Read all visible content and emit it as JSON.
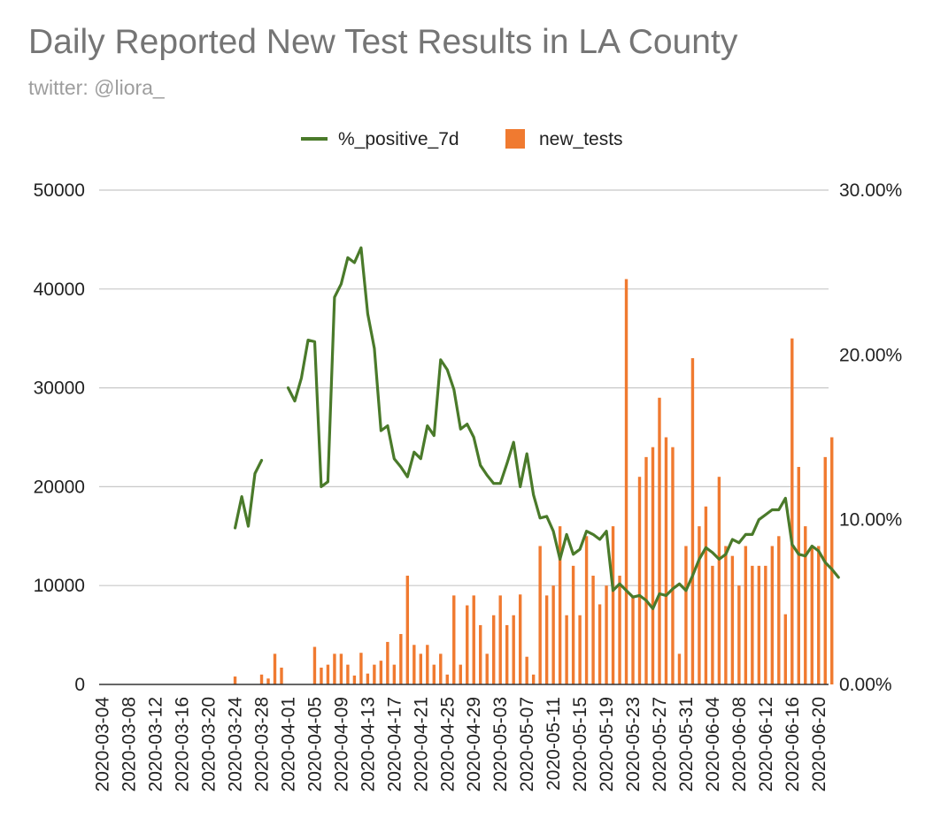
{
  "chart_data": {
    "type": "bar",
    "title": "Daily Reported New Test Results in LA County",
    "subtitle": "twitter: @liora_",
    "xlabel": "",
    "ylabel_left": "",
    "ylabel_right": "",
    "legend_position": "top-center",
    "grid": true,
    "start_date": "2020-03-04",
    "date_labels": [
      "2020-03-04",
      "2020-03-08",
      "2020-03-12",
      "2020-03-16",
      "2020-03-20",
      "2020-03-24",
      "2020-03-28",
      "2020-04-01",
      "2020-04-05",
      "2020-04-09",
      "2020-04-13",
      "2020-04-17",
      "2020-04-21",
      "2020-04-25",
      "2020-04-29",
      "2020-05-03",
      "2020-05-07",
      "2020-05-11",
      "2020-05-15",
      "2020-05-19",
      "2020-05-23",
      "2020-05-27",
      "2020-05-31",
      "2020-06-04",
      "2020-06-08",
      "2020-06-12",
      "2020-06-16",
      "2020-06-20"
    ],
    "y_left": {
      "min": 0,
      "max": 50000,
      "ticks": [
        "50000",
        "40000",
        "30000",
        "20000",
        "10000",
        "0"
      ]
    },
    "y_right": {
      "min": 0,
      "max": 30,
      "ticks": [
        "30.00%",
        "20.00%",
        "10.00%",
        "0.00%"
      ]
    },
    "series": [
      {
        "name": "%_positive_7d",
        "axis": "right",
        "kind": "line",
        "color": "#4a7a2a",
        "values": [
          null,
          null,
          null,
          null,
          null,
          null,
          null,
          null,
          null,
          null,
          null,
          null,
          null,
          null,
          null,
          null,
          null,
          null,
          null,
          null,
          9.5,
          11.4,
          9.6,
          12.8,
          13.6,
          null,
          null,
          null,
          18.0,
          17.2,
          18.6,
          20.9,
          20.8,
          12.0,
          12.3,
          23.5,
          24.3,
          25.9,
          25.6,
          26.5,
          22.5,
          20.4,
          15.4,
          15.7,
          13.7,
          13.2,
          12.6,
          14.1,
          13.7,
          15.7,
          15.1,
          19.7,
          19.1,
          17.9,
          15.5,
          15.8,
          15.0,
          13.3,
          12.7,
          12.2,
          12.2,
          13.4,
          14.7,
          12.0,
          14.0,
          11.5,
          10.1,
          10.2,
          9.3,
          7.6,
          9.1,
          7.9,
          8.2,
          9.3,
          9.1,
          8.8,
          9.3,
          5.7,
          6.1,
          5.7,
          5.3,
          5.4,
          5.1,
          4.6,
          5.5,
          5.4,
          5.8,
          6.1,
          5.7,
          6.6,
          7.6,
          8.3,
          8.0,
          7.6,
          7.9,
          8.8,
          8.6,
          9.1,
          9.1,
          10.0,
          10.3,
          10.6,
          10.6,
          11.3,
          8.5,
          7.9,
          7.8,
          8.4,
          8.1,
          7.4,
          7.0,
          6.5
        ]
      },
      {
        "name": "new_tests",
        "axis": "left",
        "kind": "bar",
        "color": "#f07a30",
        "values": [
          0,
          0,
          0,
          0,
          0,
          0,
          0,
          0,
          0,
          0,
          0,
          0,
          0,
          0,
          0,
          0,
          0,
          0,
          0,
          0,
          800,
          0,
          0,
          0,
          1000,
          600,
          3100,
          1700,
          0,
          0,
          0,
          0,
          3800,
          1700,
          2000,
          3100,
          3100,
          2000,
          900,
          3200,
          1100,
          2000,
          2400,
          4300,
          2000,
          5100,
          11000,
          4000,
          3100,
          4000,
          2000,
          3100,
          1000,
          9000,
          2000,
          8000,
          9000,
          6000,
          3100,
          7000,
          9000,
          6000,
          7000,
          9100,
          2800,
          1000,
          14000,
          9000,
          10000,
          16000,
          7000,
          12000,
          7000,
          15000,
          11000,
          8100,
          10000,
          16000,
          11000,
          41000,
          9000,
          21000,
          23000,
          24000,
          29000,
          25000,
          24000,
          3100,
          14000,
          33000,
          16000,
          18000,
          12000,
          21000,
          14000,
          13000,
          10000,
          14000,
          12000,
          12000,
          12000,
          14000,
          15000,
          7100,
          35000,
          22000,
          16000,
          14000,
          14000,
          23000,
          25000
        ]
      }
    ]
  }
}
